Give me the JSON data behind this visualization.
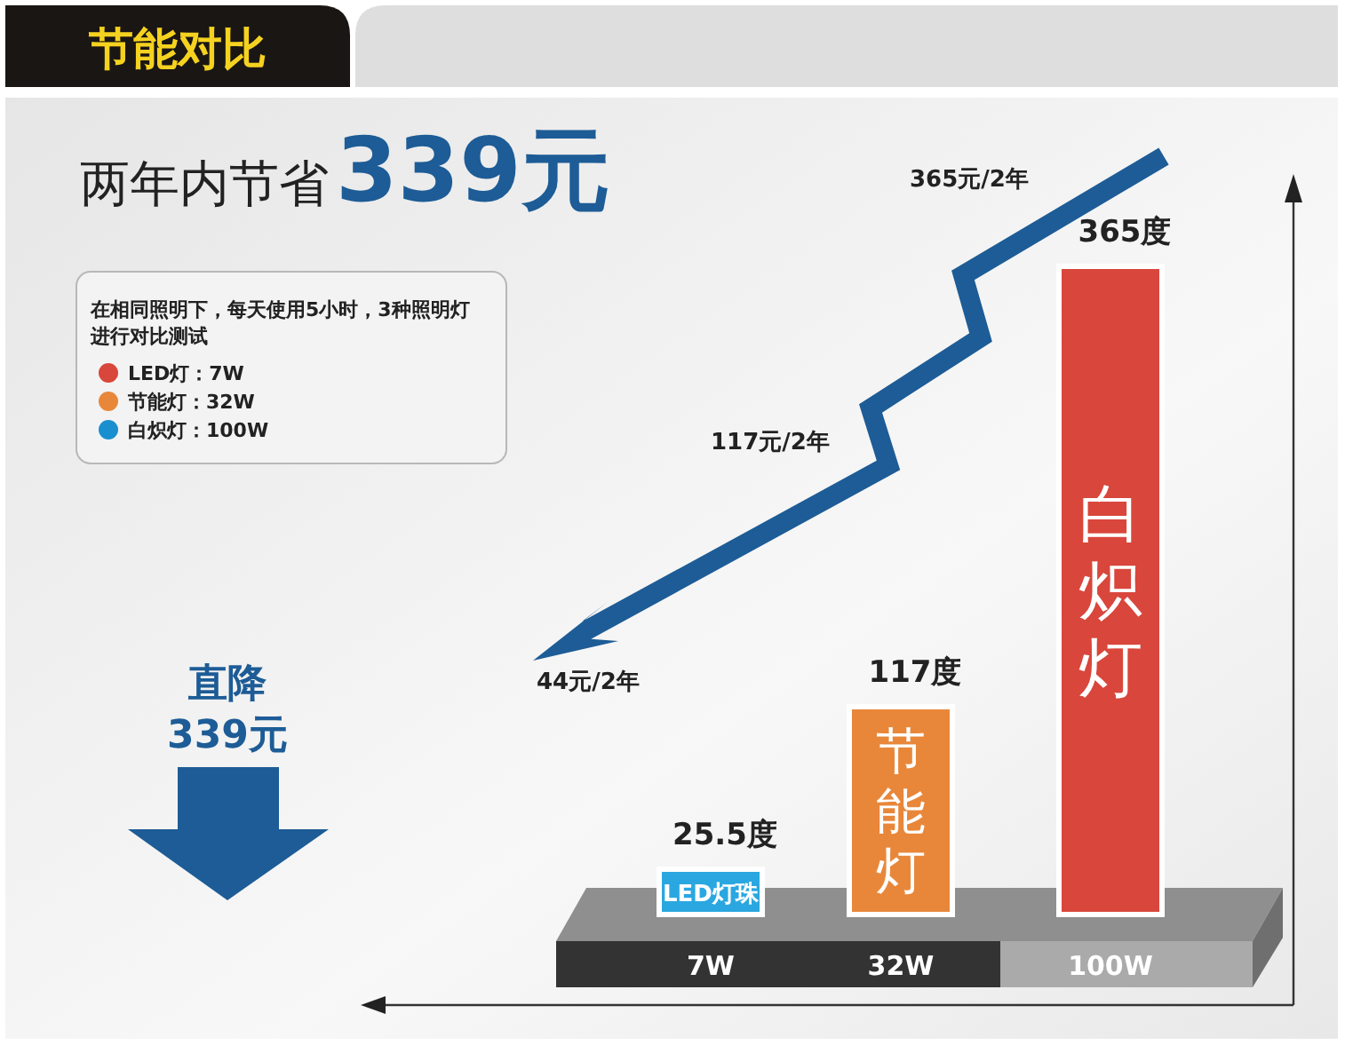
{
  "chart_data": {
    "type": "bar",
    "title": "节能对比",
    "subtitle": "两年内节省339元",
    "categories": [
      "7W",
      "32W",
      "100W"
    ],
    "values": [
      25.5,
      117,
      365
    ],
    "colors": [
      "#2aa7e0",
      "#e8873a",
      "#d9463b"
    ],
    "value_labels": [
      "25.5度",
      "117度",
      "365度"
    ],
    "annotations": [
      "在相同照明下，每天使用5小时，3种照明灯",
      "进行对比测试",
      "LED灯：7W",
      "节能灯：32W",
      "白炽灯：100W",
      "365元/2年",
      "117元/2年",
      "44元/2年",
      "直降",
      "339元",
      "LED灯珠",
      "节能灯",
      "白炽灯"
    ]
  }
}
